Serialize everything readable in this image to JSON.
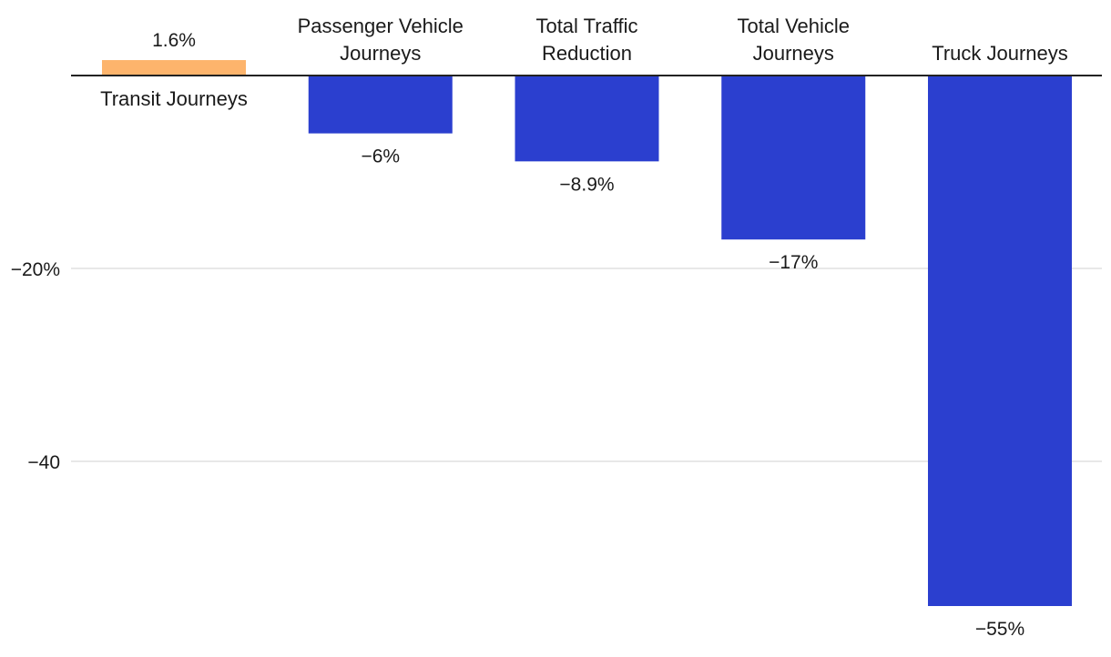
{
  "chart_data": {
    "type": "bar",
    "title": "",
    "xlabel": "",
    "ylabel": "",
    "ylim": [
      -57,
      2
    ],
    "y_ticks": [
      {
        "value": -20,
        "label": "−20%"
      },
      {
        "value": -40,
        "label": "−40"
      }
    ],
    "grid": true,
    "categories": [
      "Transit Journeys",
      "Passenger Vehicle Journeys",
      "Total Traffic Reduction",
      "Total Vehicle Journeys",
      "Truck Journeys"
    ],
    "values": [
      1.6,
      -6,
      -8.9,
      -17,
      -55
    ],
    "value_labels": [
      "1.6%",
      "−6%",
      "−8.9%",
      "−17%",
      "−55%"
    ],
    "bar_colors": [
      "#fdb46c",
      "#2b3fcf",
      "#2b3fcf",
      "#2b3fcf",
      "#2b3fcf"
    ]
  }
}
